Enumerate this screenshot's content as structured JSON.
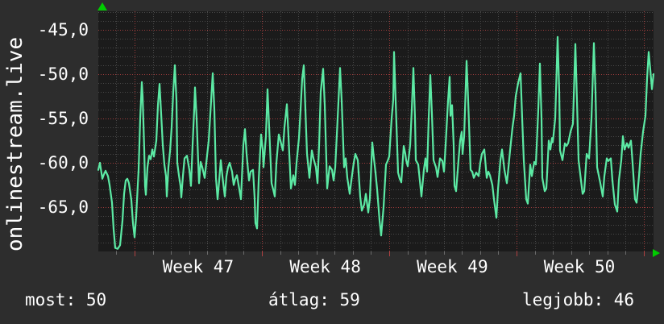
{
  "left_title": "onlinestream.live",
  "y_axis": {
    "tick_labels": [
      "-45,0",
      "-50,0",
      "-55,0",
      "-60,0",
      "-65,0"
    ],
    "tick_values": [
      -45,
      -50,
      -55,
      -60,
      -65
    ]
  },
  "x_axis": {
    "week_labels": [
      "Week 47",
      "Week 48",
      "Week 49",
      "Week 50"
    ]
  },
  "footer": {
    "most": "most: 50",
    "atlag": "átlag: 59",
    "legjobb": "legjobb: 46"
  },
  "icons": {
    "y_axis_arrow": "up-arrow",
    "x_axis_arrow": "right-arrow"
  },
  "colors": {
    "background": "#2d2d2d",
    "plot_background": "#1b1b1b",
    "grid_minor": "#484848",
    "grid_major": "#9e3c3c",
    "tick_minor": "#6b6b6b",
    "tick_major": "#b04141",
    "line": "#5ce9a4",
    "axis_arrow": "#00cc00",
    "text": "#ffffff"
  },
  "chart_data": {
    "type": "line",
    "title": "onlinestream.live",
    "x_tick_labels": [
      "Week 47",
      "Week 48",
      "Week 49",
      "Week 50"
    ],
    "y_tick_values": [
      -45,
      -50,
      -55,
      -60,
      -65
    ],
    "ylim": [
      -70.1,
      -42.9
    ],
    "x_span_days": 30.5,
    "grid": "dotted; minor every 1 unit / 1 day, major red every 5 units / 1 week",
    "legend_position": "none",
    "stats": {
      "most": 50,
      "atlag": 59,
      "legjobb": 46
    },
    "series": [
      {
        "name": "onlinestream.live",
        "color": "#5ce9a4",
        "points": [
          [
            0,
            -60.8
          ],
          [
            2,
            -60
          ],
          [
            5,
            -61.8
          ],
          [
            7,
            -61.3
          ],
          [
            9,
            -60.9
          ],
          [
            12,
            -61.5
          ],
          [
            14,
            -62.5
          ],
          [
            17,
            -64.5
          ],
          [
            19,
            -67.5
          ],
          [
            21,
            -69.6
          ],
          [
            24,
            -69.7
          ],
          [
            27,
            -69.3
          ],
          [
            30,
            -66.5
          ],
          [
            32,
            -63.5
          ],
          [
            34,
            -62
          ],
          [
            36,
            -61.8
          ],
          [
            38,
            -62.3
          ],
          [
            41,
            -64.2
          ],
          [
            43,
            -66.8
          ],
          [
            45,
            -68.4
          ],
          [
            47,
            -66
          ],
          [
            49,
            -62.5
          ],
          [
            50,
            -60.8
          ],
          [
            52,
            -55
          ],
          [
            54,
            -50.9
          ],
          [
            55,
            -52.5
          ],
          [
            57,
            -58.5
          ],
          [
            58,
            -62.6
          ],
          [
            59,
            -63.6
          ],
          [
            61,
            -60.5
          ],
          [
            63,
            -59.2
          ],
          [
            65,
            -59.6
          ],
          [
            67,
            -58.5
          ],
          [
            69,
            -59.3
          ],
          [
            72,
            -57.5
          ],
          [
            74,
            -53.5
          ],
          [
            76,
            -51.1
          ],
          [
            78,
            -54.5
          ],
          [
            80,
            -58
          ],
          [
            82,
            -60.2
          ],
          [
            84,
            -61.5
          ],
          [
            85,
            -63.8
          ],
          [
            87,
            -60.5
          ],
          [
            89,
            -58.7
          ],
          [
            91,
            -56
          ],
          [
            93,
            -52
          ],
          [
            95,
            -49
          ],
          [
            97,
            -53
          ],
          [
            98,
            -60
          ],
          [
            100,
            -61.4
          ],
          [
            102,
            -62.6
          ],
          [
            103,
            -63.9
          ],
          [
            105,
            -61.5
          ],
          [
            107,
            -59.5
          ],
          [
            110,
            -59.2
          ],
          [
            113,
            -60.8
          ],
          [
            115,
            -62.6
          ],
          [
            117,
            -58
          ],
          [
            119,
            -54
          ],
          [
            120,
            -51.5
          ],
          [
            122,
            -55
          ],
          [
            124,
            -60
          ],
          [
            125,
            -62.3
          ],
          [
            127,
            -59.9
          ],
          [
            129,
            -60.5
          ],
          [
            132,
            -61.7
          ],
          [
            134,
            -60
          ],
          [
            137,
            -57.5
          ],
          [
            140,
            -53
          ],
          [
            142,
            -49.9
          ],
          [
            144,
            -54
          ],
          [
            146,
            -61.7
          ],
          [
            148,
            -64.1
          ],
          [
            150,
            -62
          ],
          [
            152,
            -59.7
          ],
          [
            154,
            -61.5
          ],
          [
            157,
            -63.8
          ],
          [
            159,
            -61.5
          ],
          [
            161,
            -60.5
          ],
          [
            163,
            -60
          ],
          [
            166,
            -61
          ],
          [
            168,
            -62.5
          ],
          [
            170,
            -61.8
          ],
          [
            172,
            -61.4
          ],
          [
            175,
            -63
          ],
          [
            177,
            -64.1
          ],
          [
            180,
            -58
          ],
          [
            182,
            -56.2
          ],
          [
            184,
            -59
          ],
          [
            187,
            -62
          ],
          [
            189,
            -61
          ],
          [
            192,
            -60.8
          ],
          [
            194,
            -64
          ],
          [
            195,
            -66.8
          ],
          [
            197,
            -67.4
          ],
          [
            199,
            -62
          ],
          [
            202,
            -56.8
          ],
          [
            204,
            -58.5
          ],
          [
            205,
            -60.5
          ],
          [
            208,
            -57
          ],
          [
            210,
            -51.7
          ],
          [
            212,
            -56
          ],
          [
            215,
            -62.3
          ],
          [
            217,
            -63
          ],
          [
            219,
            -63.8
          ],
          [
            221,
            -60
          ],
          [
            224,
            -56.8
          ],
          [
            226,
            -57.5
          ],
          [
            229,
            -58.6
          ],
          [
            231,
            -56
          ],
          [
            234,
            -53.4
          ],
          [
            236,
            -57
          ],
          [
            239,
            -62.9
          ],
          [
            242,
            -61.4
          ],
          [
            244,
            -62.5
          ],
          [
            246,
            -60
          ],
          [
            249,
            -57.2
          ],
          [
            251,
            -54
          ],
          [
            253,
            -50.5
          ],
          [
            255,
            -49
          ],
          [
            257,
            -54
          ],
          [
            259,
            -59
          ],
          [
            262,
            -61.7
          ],
          [
            265,
            -58.6
          ],
          [
            267,
            -59.5
          ],
          [
            270,
            -60.5
          ],
          [
            272,
            -62.3
          ],
          [
            274,
            -58
          ],
          [
            276,
            -52
          ],
          [
            279,
            -49.4
          ],
          [
            281,
            -53.5
          ],
          [
            284,
            -62.9
          ],
          [
            287,
            -60.4
          ],
          [
            290,
            -60.8
          ],
          [
            292,
            -62
          ],
          [
            294,
            -60.5
          ],
          [
            297,
            -55
          ],
          [
            300,
            -49.3
          ],
          [
            302,
            -53
          ],
          [
            305,
            -60.5
          ],
          [
            307,
            -59.5
          ],
          [
            309,
            -61.7
          ],
          [
            312,
            -63.5
          ],
          [
            314,
            -62
          ],
          [
            317,
            -60
          ],
          [
            319,
            -59
          ],
          [
            322,
            -59.7
          ],
          [
            325,
            -63.8
          ],
          [
            327,
            -65.4
          ],
          [
            330,
            -64.7
          ],
          [
            332,
            -63.5
          ],
          [
            335,
            -65.6
          ],
          [
            337,
            -64
          ],
          [
            340,
            -57.7
          ],
          [
            342,
            -59.5
          ],
          [
            344,
            -61.1
          ],
          [
            346,
            -63
          ],
          [
            349,
            -66.5
          ],
          [
            351,
            -68.2
          ],
          [
            354,
            -65
          ],
          [
            357,
            -60.2
          ],
          [
            359,
            -59.8
          ],
          [
            361,
            -59.3
          ],
          [
            364,
            -55
          ],
          [
            366,
            -52.9
          ],
          [
            367,
            -47.5
          ],
          [
            369,
            -53
          ],
          [
            372,
            -61.1
          ],
          [
            374,
            -61.8
          ],
          [
            376,
            -62.2
          ],
          [
            379,
            -58.1
          ],
          [
            381,
            -59
          ],
          [
            382,
            -59.7
          ],
          [
            384,
            -60.4
          ],
          [
            387,
            -58
          ],
          [
            389,
            -54
          ],
          [
            391,
            -49.3
          ],
          [
            393,
            -55
          ],
          [
            394,
            -59.7
          ],
          [
            397,
            -60.2
          ],
          [
            399,
            -62
          ],
          [
            401,
            -63.8
          ],
          [
            404,
            -60.8
          ],
          [
            406,
            -59.5
          ],
          [
            408,
            -61
          ],
          [
            410,
            -55
          ],
          [
            412,
            -50.1
          ],
          [
            414,
            -54.5
          ],
          [
            416,
            -59.7
          ],
          [
            419,
            -60.5
          ],
          [
            421,
            -61.6
          ],
          [
            424,
            -59.5
          ],
          [
            427,
            -59.8
          ],
          [
            429,
            -61
          ],
          [
            431,
            -58
          ],
          [
            434,
            -53
          ],
          [
            436,
            -50.3
          ],
          [
            437,
            -54.7
          ],
          [
            439,
            -53.5
          ],
          [
            441,
            -58
          ],
          [
            442,
            -62.6
          ],
          [
            444,
            -63.2
          ],
          [
            447,
            -59.7
          ],
          [
            449,
            -57.5
          ],
          [
            451,
            -56.5
          ],
          [
            452,
            -59
          ],
          [
            454,
            -57
          ],
          [
            457,
            -48.5
          ],
          [
            459,
            -53
          ],
          [
            462,
            -60.8
          ],
          [
            464,
            -61
          ],
          [
            466,
            -61.7
          ],
          [
            469,
            -61.1
          ],
          [
            472,
            -61.5
          ],
          [
            474,
            -60
          ],
          [
            476,
            -59
          ],
          [
            479,
            -58.5
          ],
          [
            482,
            -61.7
          ],
          [
            484,
            -61
          ],
          [
            486,
            -61.4
          ],
          [
            489,
            -62.5
          ],
          [
            491,
            -64.1
          ],
          [
            494,
            -66.2
          ],
          [
            496,
            -63
          ],
          [
            499,
            -59.7
          ],
          [
            501,
            -58.5
          ],
          [
            504,
            -60.8
          ],
          [
            507,
            -62.3
          ],
          [
            509,
            -60.5
          ],
          [
            511,
            -58.6
          ],
          [
            514,
            -56
          ],
          [
            516,
            -54.7
          ],
          [
            518,
            -52.5
          ],
          [
            521,
            -51
          ],
          [
            524,
            -49.9
          ],
          [
            526,
            -55
          ],
          [
            528,
            -59.7
          ],
          [
            531,
            -64.1
          ],
          [
            533,
            -64.6
          ],
          [
            536,
            -60.2
          ],
          [
            538,
            -61.5
          ],
          [
            541,
            -59.9
          ],
          [
            543,
            -60.2
          ],
          [
            546,
            -54
          ],
          [
            548,
            -48.8
          ],
          [
            550,
            -55
          ],
          [
            551,
            -61.7
          ],
          [
            554,
            -63.2
          ],
          [
            556,
            -62.9
          ],
          [
            559,
            -57.5
          ],
          [
            561,
            -58.5
          ],
          [
            563,
            -57.2
          ],
          [
            564,
            -57.7
          ],
          [
            567,
            -55
          ],
          [
            570,
            -45.8
          ],
          [
            572,
            -52
          ],
          [
            573,
            -58.6
          ],
          [
            576,
            -59.7
          ],
          [
            579,
            -57.8
          ],
          [
            581,
            -58.1
          ],
          [
            583,
            -57.8
          ],
          [
            586,
            -56.5
          ],
          [
            589,
            -55.6
          ],
          [
            592,
            -46.6
          ],
          [
            594,
            -53
          ],
          [
            596,
            -59.7
          ],
          [
            599,
            -62
          ],
          [
            601,
            -63.5
          ],
          [
            603,
            -63.2
          ],
          [
            606,
            -59
          ],
          [
            609,
            -59.5
          ],
          [
            612,
            -55
          ],
          [
            615,
            -46.5
          ],
          [
            617,
            -52
          ],
          [
            619,
            -60.5
          ],
          [
            623,
            -62.3
          ],
          [
            626,
            -63.8
          ],
          [
            628,
            -61.5
          ],
          [
            631,
            -59.5
          ],
          [
            633,
            -59.8
          ],
          [
            636,
            -59.5
          ],
          [
            638,
            -62
          ],
          [
            641,
            -64.7
          ],
          [
            644,
            -65.5
          ],
          [
            646,
            -62
          ],
          [
            649,
            -59.7
          ],
          [
            651,
            -57
          ],
          [
            653,
            -58.5
          ],
          [
            656,
            -57.8
          ],
          [
            658,
            -58.3
          ],
          [
            661,
            -57.5
          ],
          [
            663,
            -60
          ],
          [
            666,
            -64.1
          ],
          [
            668,
            -64.5
          ],
          [
            671,
            -61.5
          ],
          [
            673,
            -59
          ],
          [
            676,
            -56.5
          ],
          [
            679,
            -54.7
          ],
          [
            681,
            -50.5
          ],
          [
            683,
            -47.5
          ],
          [
            685,
            -49.5
          ],
          [
            687,
            -51.7
          ],
          [
            689,
            -50
          ]
        ]
      }
    ]
  }
}
